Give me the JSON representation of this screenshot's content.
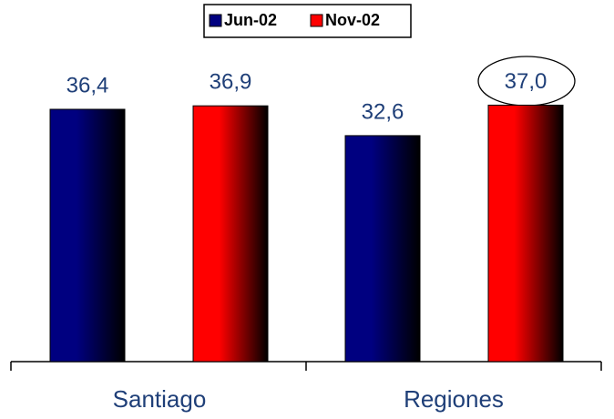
{
  "chart_data": {
    "type": "bar",
    "categories": [
      "Santiago",
      "Regiones"
    ],
    "series": [
      {
        "name": "Jun-02",
        "color": "#000080",
        "values": [
          36.4,
          32.6
        ],
        "value_labels": [
          "36,4",
          "32,6"
        ]
      },
      {
        "name": "Nov-02",
        "color": "#ff0000",
        "values": [
          36.9,
          37.0
        ],
        "value_labels": [
          "36,9",
          "37,0"
        ]
      }
    ]
  }
}
